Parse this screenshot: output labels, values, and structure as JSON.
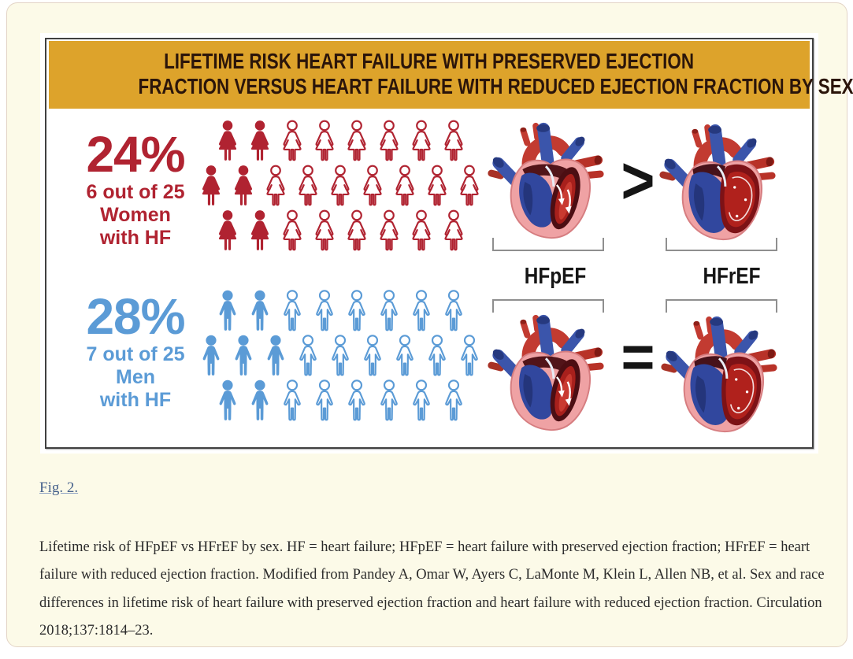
{
  "figure": {
    "title": {
      "line1": "LIFETIME RISK HEART FAILURE WITH PRESERVED EJECTION",
      "line2": "FRACTION VERSUS HEART FAILURE WITH REDUCED EJECTION FRACTION BY SEX"
    },
    "colors": {
      "band": "#DDA32B",
      "title_text": "#2B150A",
      "women": "#B02331",
      "men": "#5B9BD6",
      "symbol": "#151515",
      "bracket": "#8F8F8F",
      "panel_bg": "#FCFAE8"
    },
    "women": {
      "percent": "24%",
      "ratio": "6 out of 25",
      "group": "Women",
      "suffix": "with HF",
      "affected": 6,
      "total": 25,
      "rows": [
        [
          2,
          6
        ],
        [
          2,
          7
        ],
        [
          2,
          6
        ]
      ]
    },
    "men": {
      "percent": "28%",
      "ratio": "7 out of 25",
      "group": "Men",
      "suffix": "with HF",
      "affected": 7,
      "total": 25,
      "rows": [
        [
          2,
          6
        ],
        [
          3,
          6
        ],
        [
          2,
          6
        ]
      ]
    },
    "comparison": {
      "left_label": "HFpEF",
      "right_label": "HFrEF",
      "women_symbol": ">",
      "men_symbol": "="
    }
  },
  "caption": {
    "link": "Fig. 2.",
    "text": "Lifetime risk of HFpEF vs HFrEF by sex. HF = heart failure; HFpEF = heart failure with preserved ejection fraction; HFrEF = heart failure with reduced ejection fraction. Modified from Pandey A, Omar W, Ayers C, LaMonte M, Klein L, Allen NB, et al. Sex and race differences in lifetime risk of heart failure with preserved ejection fraction and heart failure with reduced ejection fraction. Circulation 2018;137:1814–23."
  },
  "chart_data": {
    "type": "pictograph",
    "title": "Lifetime risk heart failure with preserved ejection fraction versus heart failure with reduced ejection fraction by sex",
    "series": [
      {
        "name": "Women with HF",
        "percent": 24,
        "numerator": 6,
        "denominator": 25,
        "color": "#B02331",
        "hfpef_vs_hfref": ">"
      },
      {
        "name": "Men with HF",
        "percent": 28,
        "numerator": 7,
        "denominator": 25,
        "color": "#5B9BD6",
        "hfpef_vs_hfref": "="
      }
    ],
    "legend": [
      "HFpEF",
      "HFrEF"
    ]
  }
}
